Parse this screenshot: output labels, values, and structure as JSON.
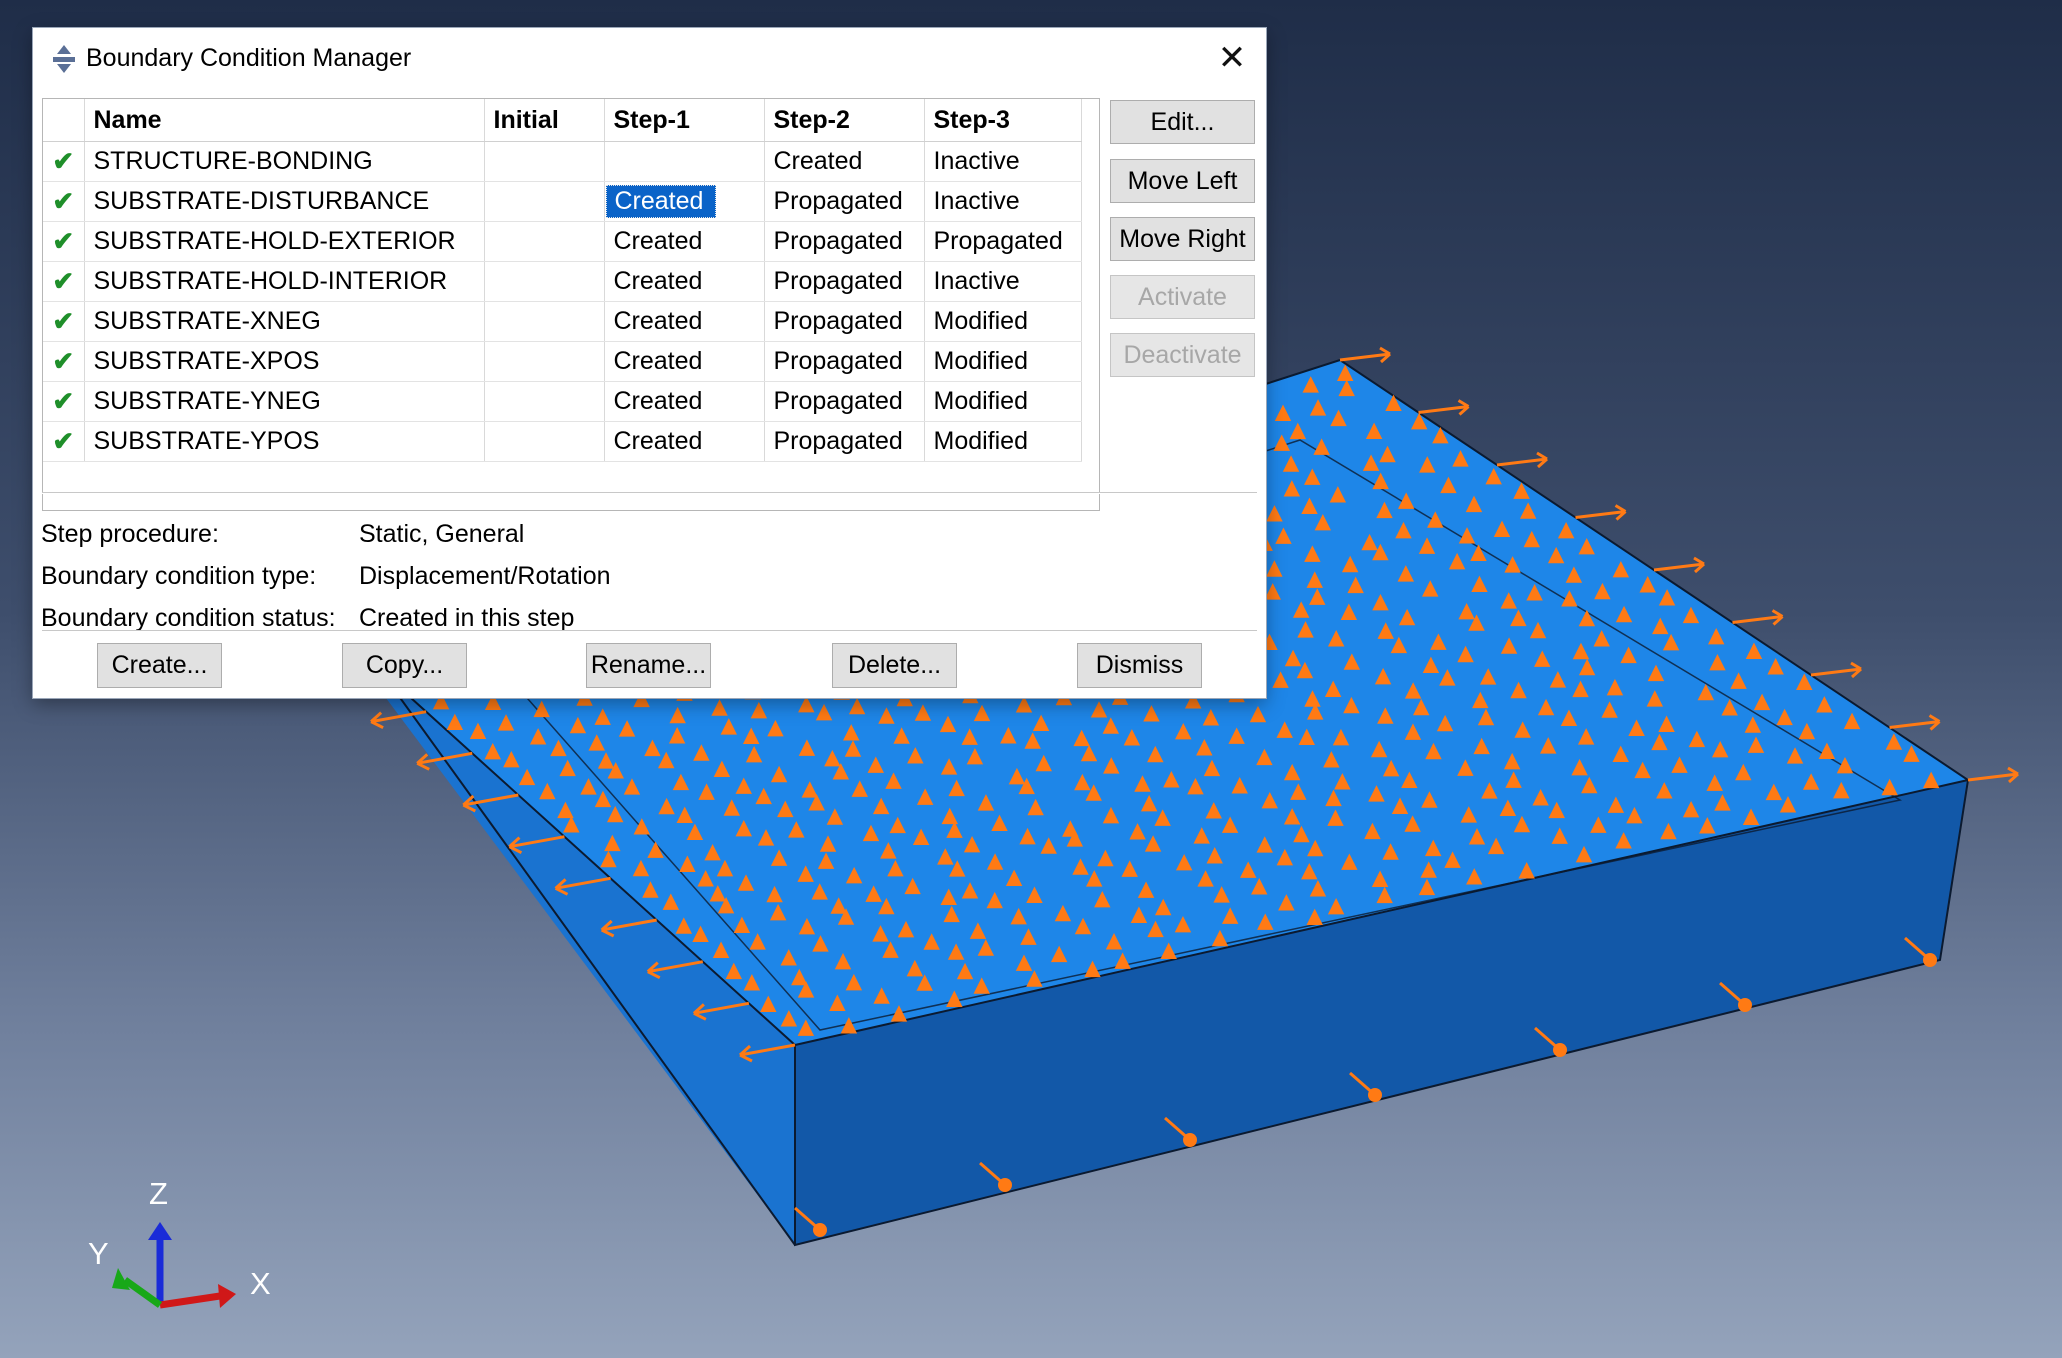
{
  "dialog": {
    "title": "Boundary Condition Manager",
    "icon": "boundary-condition-icon",
    "close_icon": "close-icon"
  },
  "table": {
    "columns": [
      "Name",
      "Initial",
      "Step-1",
      "Step-2",
      "Step-3"
    ],
    "rows": [
      {
        "name": "STRUCTURE-BONDING",
        "initial": "",
        "step1": "",
        "step2": "Created",
        "step3": "Inactive"
      },
      {
        "name": "SUBSTRATE-DISTURBANCE",
        "initial": "",
        "step1": "Created",
        "step2": "Propagated",
        "step3": "Inactive"
      },
      {
        "name": "SUBSTRATE-HOLD-EXTERIOR",
        "initial": "",
        "step1": "Created",
        "step2": "Propagated",
        "step3": "Propagated"
      },
      {
        "name": "SUBSTRATE-HOLD-INTERIOR",
        "initial": "",
        "step1": "Created",
        "step2": "Propagated",
        "step3": "Inactive"
      },
      {
        "name": "SUBSTRATE-XNEG",
        "initial": "",
        "step1": "Created",
        "step2": "Propagated",
        "step3": "Modified"
      },
      {
        "name": "SUBSTRATE-XPOS",
        "initial": "",
        "step1": "Created",
        "step2": "Propagated",
        "step3": "Modified"
      },
      {
        "name": "SUBSTRATE-YNEG",
        "initial": "",
        "step1": "Created",
        "step2": "Propagated",
        "step3": "Modified"
      },
      {
        "name": "SUBSTRATE-YPOS",
        "initial": "",
        "step1": "Created",
        "step2": "Propagated",
        "step3": "Modified"
      }
    ],
    "selected_cell": "SUBSTRATE-DISTURBANCE / Step-1"
  },
  "side_buttons": {
    "edit": "Edit...",
    "move_left": "Move Left",
    "move_right": "Move Right",
    "activate": "Activate",
    "deactivate": "Deactivate"
  },
  "info": {
    "step_procedure_label": "Step procedure:",
    "step_procedure_value": "Static, General",
    "bc_type_label": "Boundary condition type:",
    "bc_type_value": "Displacement/Rotation",
    "bc_status_label": "Boundary condition status:",
    "bc_status_value": "Created in this step"
  },
  "bottom_buttons": {
    "create": "Create...",
    "copy": "Copy...",
    "rename": "Rename...",
    "delete": "Delete...",
    "dismiss": "Dismiss"
  },
  "triad": {
    "x": "X",
    "y": "Y",
    "z": "Z"
  },
  "colors": {
    "part_top": "#1e86e8",
    "part_side": "#1258a8",
    "bc_symbol": "#ff7a14",
    "selection": "#0a63c8",
    "check": "#1f8f2a"
  }
}
